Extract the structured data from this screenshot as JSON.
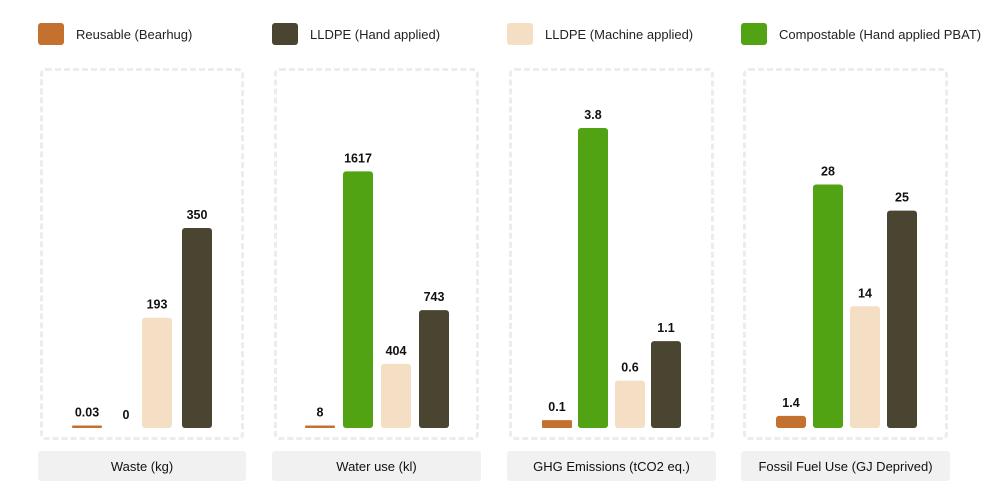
{
  "colors": {
    "reusable": "#c4702e",
    "lldpe_hand": "#4a4530",
    "lldpe_machine": "#f4dfc4",
    "compostable": "#52a313"
  },
  "legend": [
    {
      "key": "reusable",
      "label": "Reusable (Bearhug)"
    },
    {
      "key": "lldpe_hand",
      "label": "LLDPE (Hand applied)"
    },
    {
      "key": "lldpe_machine",
      "label": "LLDPE (Machine applied)"
    },
    {
      "key": "compostable",
      "label": "Compostable (Hand applied PBAT)"
    }
  ],
  "chart_data": [
    {
      "type": "bar",
      "xlabel": "Waste (kg)",
      "bars": [
        {
          "series": "reusable",
          "value": 0.03,
          "label": "0.03"
        },
        {
          "series": "compostable",
          "value": 0,
          "label": "0"
        },
        {
          "series": "lldpe_machine",
          "value": 193,
          "label": "193"
        },
        {
          "series": "lldpe_hand",
          "value": 350,
          "label": "350"
        }
      ],
      "ylim": [
        0,
        525
      ]
    },
    {
      "type": "bar",
      "xlabel": "Water use (kl)",
      "bars": [
        {
          "series": "reusable",
          "value": 8,
          "label": "8"
        },
        {
          "series": "compostable",
          "value": 1617,
          "label": "1617"
        },
        {
          "series": "lldpe_machine",
          "value": 404,
          "label": "404"
        },
        {
          "series": "lldpe_hand",
          "value": 743,
          "label": "743"
        }
      ],
      "ylim": [
        0,
        1890
      ]
    },
    {
      "type": "bar",
      "xlabel": "GHG Emissions (tCO2 eq.)",
      "bars": [
        {
          "series": "reusable",
          "value": 0.1,
          "label": "0.1"
        },
        {
          "series": "compostable",
          "value": 3.8,
          "label": "3.8"
        },
        {
          "series": "lldpe_machine",
          "value": 0.6,
          "label": "0.6"
        },
        {
          "series": "lldpe_hand",
          "value": 1.1,
          "label": "1.1"
        }
      ],
      "ylim": [
        0,
        3.8
      ]
    },
    {
      "type": "bar",
      "xlabel": "Fossil Fuel Use (GJ Deprived)",
      "bars": [
        {
          "series": "reusable",
          "value": 1.4,
          "label": "1.4"
        },
        {
          "series": "compostable",
          "value": 28,
          "label": "28"
        },
        {
          "series": "lldpe_machine",
          "value": 14,
          "label": "14"
        },
        {
          "series": "lldpe_hand",
          "value": 25,
          "label": "25"
        }
      ],
      "ylim": [
        0,
        34.5
      ]
    }
  ]
}
